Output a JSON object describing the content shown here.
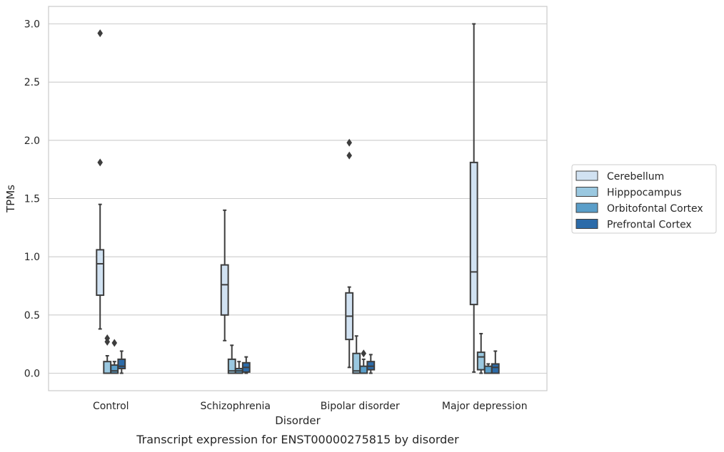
{
  "caption": "Transcript expression for ENST00000275815 by disorder",
  "chart_data": {
    "type": "box",
    "xlabel": "Disorder",
    "ylabel": "TPMs",
    "ylim": [
      -0.15,
      3.15
    ],
    "yticks": [
      0.0,
      0.5,
      1.0,
      1.5,
      2.0,
      2.5,
      3.0
    ],
    "ytick_labels": [
      "0.0",
      "0.5",
      "1.0",
      "1.5",
      "2.0",
      "2.5",
      "3.0"
    ],
    "grid": "horizontal",
    "legend_position": "right",
    "categories": [
      "Control",
      "Schizophrenia",
      "Bipolar disorder",
      "Major depression"
    ],
    "series": [
      {
        "name": "Cerebellum",
        "color": "#d1e2f2",
        "boxes": [
          {
            "whislo": 0.38,
            "q1": 0.67,
            "med": 0.94,
            "q3": 1.06,
            "whishi": 1.45,
            "fliers": [
              1.81,
              2.92
            ]
          },
          {
            "whislo": 0.28,
            "q1": 0.5,
            "med": 0.76,
            "q3": 0.93,
            "whishi": 1.4,
            "fliers": []
          },
          {
            "whislo": 0.05,
            "q1": 0.29,
            "med": 0.49,
            "q3": 0.69,
            "whishi": 0.74,
            "fliers": [
              1.87,
              1.98
            ]
          },
          {
            "whislo": 0.01,
            "q1": 0.59,
            "med": 0.87,
            "q3": 1.81,
            "whishi": 3.0,
            "fliers": []
          }
        ]
      },
      {
        "name": "Hipppocampus",
        "color": "#9ac8e0",
        "boxes": [
          {
            "whislo": 0.0,
            "q1": 0.0,
            "med": 0.0,
            "q3": 0.1,
            "whishi": 0.15,
            "fliers": [
              0.27,
              0.3
            ]
          },
          {
            "whislo": 0.0,
            "q1": 0.0,
            "med": 0.02,
            "q3": 0.12,
            "whishi": 0.24,
            "fliers": []
          },
          {
            "whislo": 0.0,
            "q1": 0.0,
            "med": 0.02,
            "q3": 0.17,
            "whishi": 0.32,
            "fliers": []
          },
          {
            "whislo": 0.0,
            "q1": 0.03,
            "med": 0.14,
            "q3": 0.18,
            "whishi": 0.34,
            "fliers": []
          }
        ]
      },
      {
        "name": "Orbitofontal Cortex",
        "color": "#5a9ec9",
        "boxes": [
          {
            "whislo": 0.0,
            "q1": 0.0,
            "med": 0.02,
            "q3": 0.07,
            "whishi": 0.1,
            "fliers": [
              0.26
            ]
          },
          {
            "whislo": 0.0,
            "q1": 0.0,
            "med": 0.02,
            "q3": 0.04,
            "whishi": 0.1,
            "fliers": []
          },
          {
            "whislo": 0.0,
            "q1": 0.0,
            "med": 0.0,
            "q3": 0.06,
            "whishi": 0.12,
            "fliers": [
              0.17
            ]
          },
          {
            "whislo": 0.0,
            "q1": 0.0,
            "med": 0.0,
            "q3": 0.06,
            "whishi": 0.08,
            "fliers": []
          }
        ]
      },
      {
        "name": "Prefrontal Cortex",
        "color": "#2c6ba9",
        "boxes": [
          {
            "whislo": 0.0,
            "q1": 0.04,
            "med": 0.06,
            "q3": 0.12,
            "whishi": 0.19,
            "fliers": []
          },
          {
            "whislo": 0.0,
            "q1": 0.01,
            "med": 0.05,
            "q3": 0.09,
            "whishi": 0.14,
            "fliers": []
          },
          {
            "whislo": 0.0,
            "q1": 0.03,
            "med": 0.06,
            "q3": 0.1,
            "whishi": 0.16,
            "fliers": []
          },
          {
            "whislo": 0.0,
            "q1": 0.0,
            "med": 0.05,
            "q3": 0.08,
            "whishi": 0.19,
            "fliers": []
          }
        ]
      }
    ]
  }
}
